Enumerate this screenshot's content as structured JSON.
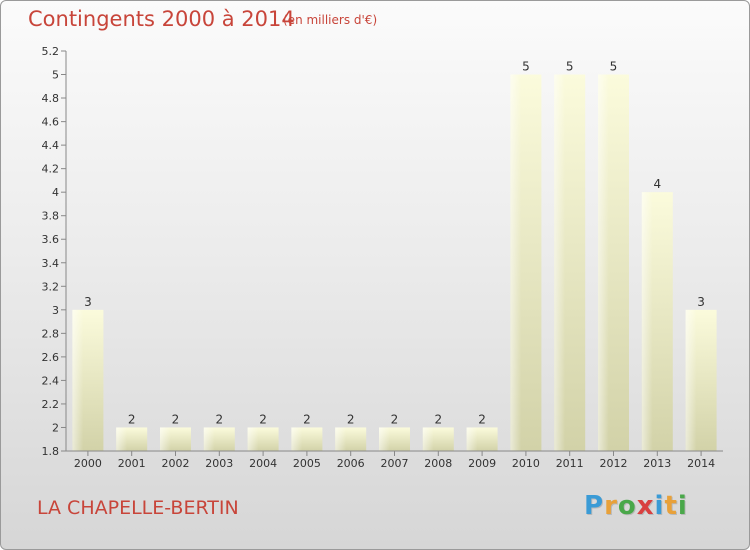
{
  "header": {
    "title": "Contingents 2000 à 2014",
    "unit": "(en milliers d'€)"
  },
  "footer": {
    "commune": "LA CHAPELLE-BERTIN",
    "logo_letters": [
      "P",
      "r",
      "o",
      "x",
      "i",
      "t",
      "i"
    ],
    "logo_colors": [
      "#3a9bd6",
      "#e8a13a",
      "#4aa84a",
      "#d94040",
      "#3a9bd6",
      "#e8a13a",
      "#4aa84a"
    ]
  },
  "chart_data": {
    "type": "bar",
    "title": "Contingents 2000 à 2014",
    "xlabel": "",
    "ylabel": "",
    "categories": [
      "2000",
      "2001",
      "2002",
      "2003",
      "2004",
      "2005",
      "2006",
      "2007",
      "2008",
      "2009",
      "2010",
      "2011",
      "2012",
      "2013",
      "2014"
    ],
    "values": [
      3,
      2,
      2,
      2,
      2,
      2,
      2,
      2,
      2,
      2,
      5,
      5,
      5,
      4,
      3
    ],
    "data_labels": [
      "3",
      "2",
      "2",
      "2",
      "2",
      "2",
      "2",
      "2",
      "2",
      "2",
      "5",
      "5",
      "5",
      "4",
      "3"
    ],
    "ylim": [
      1.8,
      5.2
    ],
    "yticks": [
      1.8,
      2,
      2.2,
      2.4,
      2.6,
      2.8,
      3,
      3.2,
      3.4,
      3.6,
      3.8,
      4,
      4.2,
      4.4,
      4.6,
      4.8,
      5,
      5.2
    ],
    "ytick_labels": [
      "1.8",
      "2",
      "2.2",
      "2.4",
      "2.6",
      "2.8",
      "3",
      "3.2",
      "3.4",
      "3.6",
      "3.8",
      "4",
      "4.2",
      "4.4",
      "4.6",
      "4.8",
      "5",
      "5.2"
    ],
    "grid": false,
    "bar_color": "#f4f4cc",
    "axis_color": "#888888"
  }
}
